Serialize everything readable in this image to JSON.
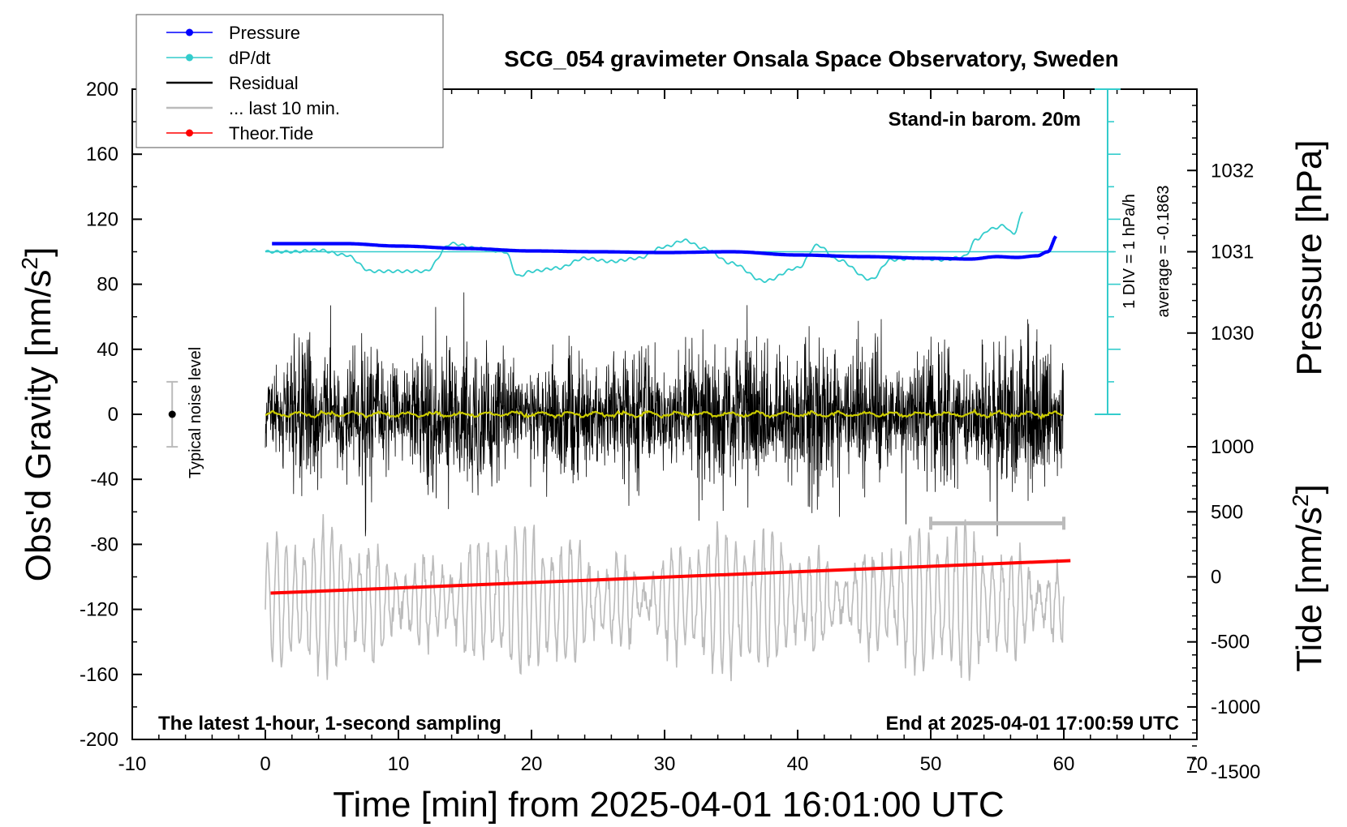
{
  "chart_data": {
    "type": "line",
    "title": "SCG_054 gravimeter Onsala Space Observatory, Sweden",
    "xlabel": "Time [min] from 2025-04-01 16:01:00 UTC",
    "ylabel": "Obs'd Gravity [nm/s",
    "ylabel_sup": "2",
    "ylabel_close": "]",
    "right_label_pressure": "Pressure [hPa]",
    "right_label_tide": "Tide [nm/s",
    "right_label_tide_sup": "2",
    "right_label_tide_close": "]",
    "xlim": [
      -10,
      70
    ],
    "ylim": [
      -200,
      200
    ],
    "x_ticks": [
      -10,
      0,
      10,
      20,
      30,
      40,
      50,
      60,
      70
    ],
    "x_tick_labels": [
      "-10",
      "0",
      "10",
      "20",
      "30",
      "40",
      "50",
      "60",
      "70"
    ],
    "y_ticks": [
      200,
      160,
      120,
      80,
      40,
      0,
      -40,
      -80,
      -120,
      -160,
      -200
    ],
    "y_tick_labels": [
      "200",
      "160",
      "120",
      "80",
      "40",
      "0",
      "-40",
      "-80",
      "-120",
      "-160",
      "-200"
    ],
    "pressure_axis": {
      "ticks": [
        1032,
        1031,
        1030
      ],
      "tick_labels": [
        "1032",
        "1031",
        "1030"
      ],
      "gravity_equiv_of_1031": 100,
      "nm_s2_per_hpa": 50
    },
    "tide_axis": {
      "ticks": [
        1000,
        500,
        0,
        -500,
        -1000,
        -1500
      ],
      "tick_labels": [
        "1000",
        "500",
        "0",
        "-500",
        "-1000",
        "-1500"
      ],
      "gravity_at_tide_zero": -100,
      "gravity_per_tide_unit": 0.08
    },
    "annotations": {
      "stand_in": "Stand-in barom. 20m",
      "scale_div": "1 DIV = 1 hPa/h",
      "average": "average = -0.1863",
      "noise": "Typical noise level",
      "latest": "The latest 1-hour, 1-second sampling",
      "end": "End at 2025-04-01 17:00:59 UTC"
    },
    "legend": [
      {
        "label": "Pressure",
        "color": "#0000ff",
        "marker": true
      },
      {
        "label": "dP/dt",
        "color": "#33cccc",
        "marker": true
      },
      {
        "label": "Residual",
        "color": "#000000",
        "marker": false
      },
      {
        "label": "... last 10 min.",
        "color": "#bbbbbb",
        "marker": false
      },
      {
        "label": "Theor.Tide",
        "color": "#ff0000",
        "marker": true
      }
    ],
    "colors": {
      "pressure": "#0000ff",
      "dpdt": "#33cccc",
      "residual": "#000000",
      "smoothed": "#cccc00",
      "last10": "#bbbbbb",
      "tide": "#ff0000"
    },
    "series": {
      "pressure_hpa": {
        "x": [
          0.5,
          3,
          6,
          10,
          15,
          20,
          25,
          30,
          35,
          40,
          45,
          50,
          53,
          55,
          56.5,
          58,
          58.8,
          59.5
        ],
        "values": [
          1031.1,
          1031.1,
          1031.1,
          1031.07,
          1031.04,
          1031.01,
          1031.0,
          1030.99,
          1031.0,
          1030.96,
          1030.94,
          1030.92,
          1030.91,
          1030.94,
          1030.93,
          1030.95,
          1031.0,
          1031.2
        ]
      },
      "dpdt_gravity_units": {
        "x": [
          0,
          2,
          4,
          6,
          8,
          10,
          12,
          14,
          16,
          18,
          19,
          20,
          22,
          24,
          26,
          28,
          30,
          31.5,
          33,
          35,
          37.5,
          40,
          41.5,
          43,
          45.5,
          47,
          49,
          51,
          52.5,
          53.5,
          54.5,
          55.5,
          56.2,
          57
        ],
        "values": [
          100,
          100,
          101,
          98,
          88,
          88,
          88,
          105,
          102,
          100,
          85,
          88,
          90,
          96,
          94,
          96,
          103,
          107,
          102,
          93,
          82,
          90,
          104,
          95,
          83,
          95,
          96,
          95,
          97,
          108,
          114,
          116,
          111,
          125
        ]
      },
      "theoretical_tide": {
        "x": [
          0.4,
          60.5
        ],
        "values": [
          -110,
          -90
        ]
      },
      "last10_window_min": [
        50,
        60
      ]
    }
  }
}
